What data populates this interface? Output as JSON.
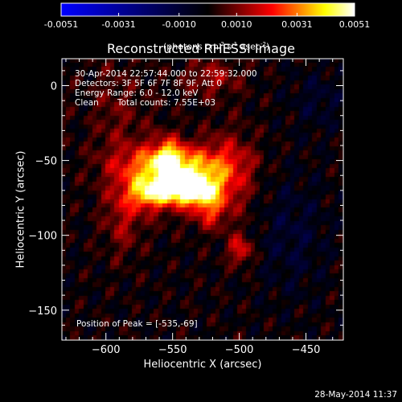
{
  "colorbar": {
    "tick_labels": [
      "-0.0051",
      "-0.0031",
      "-0.0010",
      "0.0010",
      "0.0031",
      "0.0051"
    ],
    "tick_values": [
      -0.0051,
      -0.0031,
      -0.001,
      0.001,
      0.0031,
      0.0051
    ],
    "range": [
      -0.0051,
      0.0051
    ],
    "unit_label": "(photons cm",
    "unit_exp1": "-2",
    "unit_mid": " s",
    "unit_exp2": "-1",
    "unit_tail": " asec",
    "unit_exp3": "-2",
    "unit_close": ")"
  },
  "overlay": {
    "time_range": "30-Apr-2014 22:57:44.000 to 22:59:32.000",
    "detectors": "Detectors: 3F 5F 6F 7F 8F 9F, Att 0",
    "energy_range": "Energy Range: 6.0 - 12.0 keV",
    "algorithm": "Clean",
    "total_counts": "Total counts: 7.55E+03",
    "peak": "Position of Peak = [-535,-69]"
  },
  "footer_timestamp": "28-May-2014 11:37",
  "chart_data": {
    "type": "heatmap",
    "title": "Reconstructed RHESSI Image",
    "xlabel": "Heliocentric X (arcsec)",
    "ylabel": "Heliocentric Y (arcsec)",
    "xlim": [
      -633,
      -422
    ],
    "ylim": [
      -170,
      18
    ],
    "xticks": [
      -600,
      -550,
      -500,
      -450
    ],
    "xtick_labels": [
      "−600",
      "−550",
      "−500",
      "−450"
    ],
    "yticks": [
      0,
      -50,
      -100,
      -150
    ],
    "ytick_labels": [
      "0",
      "−50",
      "−100",
      "−150"
    ],
    "colormap": [
      "#0000ff",
      "#000000",
      "#ff0000",
      "#ffff00",
      "#ffffff"
    ],
    "peak": [
      -535,
      -69
    ],
    "sources": [
      {
        "x": -535,
        "y": -69,
        "amp": 0.0051,
        "sx": 13,
        "sy": 7
      },
      {
        "x": -555,
        "y": -62,
        "amp": 0.003,
        "sx": 22,
        "sy": 14
      },
      {
        "x": -567,
        "y": -72,
        "amp": 0.0026,
        "sx": 10,
        "sy": 7
      },
      {
        "x": -553,
        "y": -48,
        "amp": 0.0022,
        "sx": 7,
        "sy": 9
      },
      {
        "x": -522,
        "y": -84,
        "amp": 0.0018,
        "sx": 8,
        "sy": 8
      },
      {
        "x": -508,
        "y": -60,
        "amp": 0.0017,
        "sx": 14,
        "sy": 20
      },
      {
        "x": -499,
        "y": -110,
        "amp": 0.0021,
        "sx": 6,
        "sy": 7
      },
      {
        "x": -545,
        "y": -52,
        "amp": 0.0018,
        "sx": 30,
        "sy": 8
      },
      {
        "x": -587,
        "y": -88,
        "amp": 0.0013,
        "sx": 10,
        "sy": 18
      },
      {
        "x": -520,
        "y": 5,
        "amp": 0.0013,
        "sx": 15,
        "sy": 9
      },
      {
        "x": -600,
        "y": -20,
        "amp": 0.0009,
        "sx": 22,
        "sy": 26
      },
      {
        "x": -460,
        "y": -100,
        "amp": -0.0008,
        "sx": 18,
        "sy": 28
      },
      {
        "x": -615,
        "y": -20,
        "amp": -0.0006,
        "sx": 10,
        "sy": 22
      },
      {
        "x": -440,
        "y": -10,
        "amp": -0.0007,
        "sx": 14,
        "sy": 14
      }
    ]
  }
}
